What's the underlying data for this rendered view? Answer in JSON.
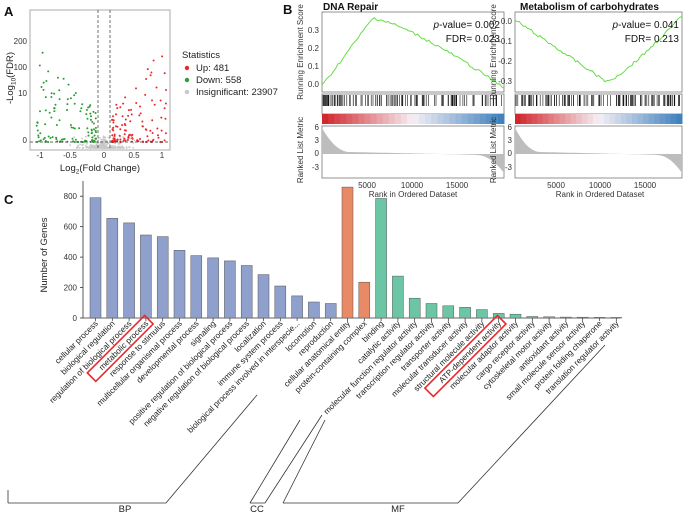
{
  "panels": {
    "a": "A",
    "b": "B",
    "c": "C"
  },
  "volcano": {
    "y_label_prefix": "-Log",
    "y_label_sub": "10",
    "y_label_suffix": "(FDR)",
    "x_label_prefix": "Log",
    "x_label_sub": "2",
    "x_label_suffix": "(Fold Change)",
    "y_ticks": [
      "0",
      "10",
      "100",
      "200"
    ],
    "x_ticks": [
      "-1",
      "-0.5",
      "0",
      "0.5",
      "1"
    ],
    "legend_title": "Statistics",
    "legend": [
      {
        "label": "Up: 481",
        "color": "#e8282b"
      },
      {
        "label": "Down: 558",
        "color": "#2e9e34"
      },
      {
        "label": "Insignificant: 23907",
        "color": "#c8c8c8"
      }
    ]
  },
  "gsea": {
    "y_label_top": "Running Enrichment Score",
    "y_label_bottom": "Ranked List Metric",
    "x_label": "Rank in Ordered Dataset",
    "x_ticks": [
      "5000",
      "10000",
      "15000"
    ],
    "metric_ticks": [
      "6",
      "3",
      "0",
      "-3"
    ],
    "line_color": "#66dd44",
    "plots": [
      {
        "title": "DNA Repair",
        "p_label": "p",
        "p_value_text": "-value= 0.002",
        "fdr_text": "FDR= 0.023",
        "es_ticks": [
          "0.3",
          "0.2",
          "0.1",
          "0.0"
        ]
      },
      {
        "title": "Metabolism of carbohydrates",
        "p_label": "p",
        "p_value_text": "-value= 0.041",
        "fdr_text": "FDR= 0.213",
        "es_ticks": [
          "0.0",
          "-0.1",
          "-0.2",
          "-0.3"
        ]
      }
    ]
  },
  "go_chart": {
    "y_label": "Number of Genes",
    "groups": [
      {
        "label": "BP"
      },
      {
        "label": "CC"
      },
      {
        "label": "MF"
      }
    ],
    "highlight_color": "#e8282b"
  },
  "chart_data": {
    "type": "bar",
    "title": "",
    "xlabel": "",
    "ylabel": "Number of Genes",
    "ylim": [
      0,
      900
    ],
    "y_ticks": [
      0,
      200,
      400,
      600,
      800
    ],
    "colors": {
      "BP": "#8ea0cb",
      "CC": "#e98a66",
      "MF": "#6cc6a5"
    },
    "categories": [
      "cellular process",
      "biological regulation",
      "regulation of biological process",
      "metabolic process",
      "response to stimulus",
      "multicellular organismal process",
      "developmental process",
      "signaling",
      "positive regulation of biological process",
      "negative regulation of biological process",
      "localization",
      "immune system process",
      "biological process involved in interspecie...",
      "locomotion",
      "reproduction",
      "cellular anatomical entity",
      "protein-containing complex",
      "binding",
      "catalytic activity",
      "molecular function regulator activity",
      "transcription regulator activity",
      "transporter activity",
      "molecular transducer activity",
      "structural molecule activity",
      "ATP-dependent activity",
      "molecular adaptor activity",
      "cargo receptor activity",
      "cytoskeletal motor activity",
      "antioxidant activity",
      "small molecule sensor activity",
      "protein folding chaperone",
      "translation regulator activity"
    ],
    "values": [
      790,
      655,
      625,
      545,
      535,
      445,
      410,
      395,
      375,
      345,
      285,
      210,
      145,
      105,
      95,
      860,
      235,
      785,
      275,
      130,
      95,
      80,
      70,
      55,
      30,
      25,
      10,
      8,
      6,
      5,
      4,
      3
    ],
    "groups": [
      "BP",
      "BP",
      "BP",
      "BP",
      "BP",
      "BP",
      "BP",
      "BP",
      "BP",
      "BP",
      "BP",
      "BP",
      "BP",
      "BP",
      "BP",
      "CC",
      "CC",
      "MF",
      "MF",
      "MF",
      "MF",
      "MF",
      "MF",
      "MF",
      "MF",
      "MF",
      "MF",
      "MF",
      "MF",
      "MF",
      "MF",
      "MF"
    ],
    "highlighted": [
      "metabolic process",
      "ATP-dependent activity"
    ]
  }
}
